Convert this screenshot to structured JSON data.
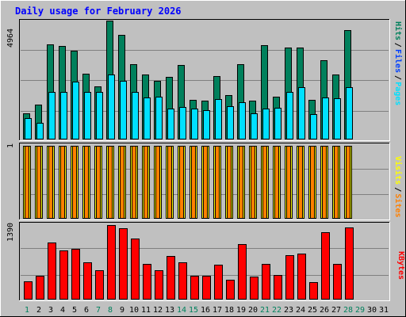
{
  "title": "Daily usage for February 2026",
  "colors": {
    "background": "#c0c0c0",
    "title": "#0000ff",
    "hits": "#00805c",
    "files": "#0040ff",
    "pages": "#00e0ff",
    "visits": "#ffff00",
    "sites": "#ff8000",
    "kbytes": "#ff0000",
    "weekend_day": "#00805c",
    "weekday": "#000000"
  },
  "side_labels": {
    "hits_files_pages": [
      "Pages",
      "/",
      "Files",
      "/",
      "Hits"
    ],
    "sites_visits": [
      "Sites",
      "/",
      "Visits"
    ],
    "kbytes": "KBytes"
  },
  "chart_data": [
    {
      "type": "bar",
      "title": "Daily usage for February 2026",
      "panel": "hits-files-pages",
      "ymax_label": "4964",
      "ylim": [
        0,
        4964
      ],
      "categories": [
        "1",
        "2",
        "3",
        "4",
        "5",
        "6",
        "7",
        "8",
        "9",
        "10",
        "11",
        "12",
        "13",
        "14",
        "15",
        "16",
        "17",
        "18",
        "19",
        "20",
        "21",
        "22",
        "23",
        "24",
        "25",
        "26",
        "27",
        "28",
        "29",
        "30",
        "31"
      ],
      "series": [
        {
          "name": "Hits",
          "values": [
            1100,
            1450,
            3970,
            3900,
            3700,
            2750,
            2220,
            4964,
            4370,
            3150,
            2700,
            2450,
            2600,
            3100,
            1650,
            1620,
            2650,
            1850,
            3150,
            1620,
            3950,
            1800,
            3850,
            3850,
            1650,
            3300,
            2700,
            4580,
            null,
            null,
            null
          ]
        },
        {
          "name": "Files",
          "values": [
            900,
            690,
            1970,
            1970,
            2400,
            1970,
            2000,
            2720,
            2440,
            1970,
            1750,
            1790,
            1290,
            1350,
            1300,
            1210,
            1690,
            1400,
            1570,
            1090,
            1300,
            1310,
            1990,
            2200,
            1070,
            1750,
            1720,
            2190,
            null,
            null,
            null
          ]
        },
        {
          "name": "Pages",
          "values": [
            900,
            690,
            1970,
            1970,
            2400,
            1970,
            2000,
            2720,
            2440,
            1970,
            1750,
            1790,
            1290,
            1350,
            1300,
            1210,
            1690,
            1400,
            1570,
            1090,
            1300,
            1310,
            1990,
            2200,
            1070,
            1750,
            1720,
            2190,
            null,
            null,
            null
          ]
        }
      ]
    },
    {
      "type": "bar",
      "panel": "sites-visits",
      "ymax_label": "1",
      "ylim": [
        0,
        1
      ],
      "categories": [
        "1",
        "2",
        "3",
        "4",
        "5",
        "6",
        "7",
        "8",
        "9",
        "10",
        "11",
        "12",
        "13",
        "14",
        "15",
        "16",
        "17",
        "18",
        "19",
        "20",
        "21",
        "22",
        "23",
        "24",
        "25",
        "26",
        "27",
        "28",
        "29",
        "30",
        "31"
      ],
      "series": [
        {
          "name": "Visits",
          "values": [
            1,
            1,
            1,
            1,
            1,
            1,
            1,
            1,
            1,
            1,
            1,
            1,
            1,
            1,
            1,
            1,
            1,
            1,
            1,
            1,
            1,
            1,
            1,
            1,
            1,
            1,
            1,
            1,
            null,
            null,
            null
          ]
        },
        {
          "name": "Sites",
          "values": [
            1,
            1,
            1,
            1,
            1,
            1,
            1,
            1,
            1,
            1,
            1,
            1,
            1,
            1,
            1,
            1,
            1,
            1,
            1,
            1,
            1,
            1,
            1,
            1,
            1,
            1,
            1,
            1,
            null,
            null,
            null
          ]
        }
      ]
    },
    {
      "type": "bar",
      "panel": "kbytes",
      "ymax_label": "1390",
      "ylim": [
        0,
        1390
      ],
      "categories": [
        "1",
        "2",
        "3",
        "4",
        "5",
        "6",
        "7",
        "8",
        "9",
        "10",
        "11",
        "12",
        "13",
        "14",
        "15",
        "16",
        "17",
        "18",
        "19",
        "20",
        "21",
        "22",
        "23",
        "24",
        "25",
        "26",
        "27",
        "28",
        "29",
        "30",
        "31"
      ],
      "series": [
        {
          "name": "KBytes",
          "values": [
            338,
            451,
            1070,
            920,
            940,
            694,
            544,
            1390,
            1330,
            1140,
            659,
            552,
            808,
            694,
            438,
            438,
            648,
            370,
            1040,
            423,
            662,
            457,
            830,
            858,
            325,
            1260,
            659,
            1350,
            null,
            null,
            null
          ]
        }
      ]
    }
  ],
  "weekend_days": [
    1,
    7,
    8,
    14,
    15,
    21,
    22,
    28,
    29
  ]
}
